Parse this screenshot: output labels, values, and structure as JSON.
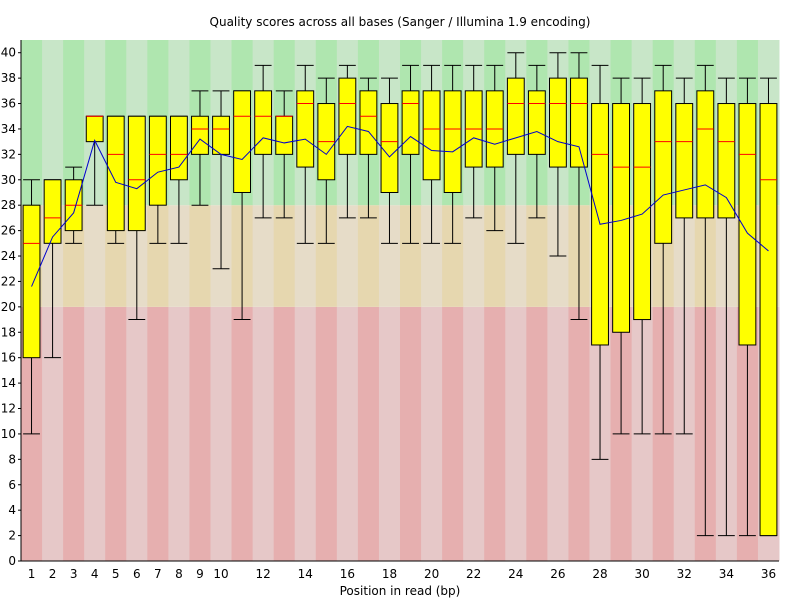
{
  "chart_data": {
    "type": "box",
    "title": "Quality scores across all bases (Sanger / Illumina 1.9 encoding)",
    "xlabel": "Position in read (bp)",
    "ylabel": "",
    "ylim": [
      0,
      41
    ],
    "y_ticks": [
      "0",
      "2",
      "4",
      "6",
      "8",
      "10",
      "12",
      "14",
      "16",
      "18",
      "20",
      "22",
      "24",
      "26",
      "28",
      "30",
      "32",
      "34",
      "36",
      "38",
      "40"
    ],
    "x_tick_labels": [
      "1",
      "2",
      "3",
      "4",
      "5",
      "6",
      "7",
      "8",
      "9",
      "10",
      "12",
      "14",
      "16",
      "18",
      "20",
      "22",
      "24",
      "26",
      "28",
      "30",
      "32",
      "34",
      "36"
    ],
    "x_tick_positions": [
      1,
      2,
      3,
      4,
      5,
      6,
      7,
      8,
      9,
      10,
      12,
      14,
      16,
      18,
      20,
      22,
      24,
      26,
      28,
      30,
      32,
      34,
      36
    ],
    "background_bands": [
      {
        "from": 0,
        "to": 20,
        "color": "#e6afaf",
        "alt_color": "#e6c8c8"
      },
      {
        "from": 20,
        "to": 28,
        "color": "#e6d7af",
        "alt_color": "#e6dcc8"
      },
      {
        "from": 28,
        "to": 41,
        "color": "#afe6af",
        "alt_color": "#c8e6c8"
      }
    ],
    "colors": {
      "box": "#ffff00",
      "median": "#ff0000",
      "mean": "#0000cc",
      "whisker": "#000000"
    },
    "positions": [
      1,
      2,
      3,
      4,
      5,
      6,
      7,
      8,
      9,
      10,
      11,
      12,
      13,
      14,
      15,
      16,
      17,
      18,
      19,
      20,
      21,
      22,
      23,
      24,
      25,
      26,
      27,
      28,
      29,
      30,
      31,
      32,
      33,
      34,
      35,
      36
    ],
    "boxes": [
      {
        "p10": 10,
        "q1": 16,
        "median": 25,
        "q3": 28,
        "p90": 30,
        "mean": 21.6
      },
      {
        "p10": 16,
        "q1": 25,
        "median": 27,
        "q3": 30,
        "p90": 30,
        "mean": 25.5
      },
      {
        "p10": 25,
        "q1": 26,
        "median": 28,
        "q3": 30,
        "p90": 31,
        "mean": 27.4
      },
      {
        "p10": 28,
        "q1": 33,
        "median": 35,
        "q3": 35,
        "p90": 35,
        "mean": 33.1
      },
      {
        "p10": 25,
        "q1": 26,
        "median": 32,
        "q3": 35,
        "p90": 35,
        "mean": 29.8
      },
      {
        "p10": 19,
        "q1": 26,
        "median": 30,
        "q3": 35,
        "p90": 35,
        "mean": 29.3
      },
      {
        "p10": 25,
        "q1": 28,
        "median": 32,
        "q3": 35,
        "p90": 35,
        "mean": 30.6
      },
      {
        "p10": 25,
        "q1": 30,
        "median": 32,
        "q3": 35,
        "p90": 35,
        "mean": 31.0
      },
      {
        "p10": 28,
        "q1": 32,
        "median": 34,
        "q3": 35,
        "p90": 37,
        "mean": 33.2
      },
      {
        "p10": 23,
        "q1": 32,
        "median": 34,
        "q3": 35,
        "p90": 37,
        "mean": 32.0
      },
      {
        "p10": 19,
        "q1": 29,
        "median": 35,
        "q3": 37,
        "p90": 37,
        "mean": 31.6
      },
      {
        "p10": 27,
        "q1": 32,
        "median": 35,
        "q3": 37,
        "p90": 39,
        "mean": 33.3
      },
      {
        "p10": 27,
        "q1": 32,
        "median": 35,
        "q3": 35,
        "p90": 37,
        "mean": 32.9
      },
      {
        "p10": 25,
        "q1": 31,
        "median": 36,
        "q3": 37,
        "p90": 39,
        "mean": 33.2
      },
      {
        "p10": 25,
        "q1": 30,
        "median": 33,
        "q3": 36,
        "p90": 38,
        "mean": 32.0
      },
      {
        "p10": 27,
        "q1": 32,
        "median": 36,
        "q3": 38,
        "p90": 39,
        "mean": 34.2
      },
      {
        "p10": 27,
        "q1": 32,
        "median": 35,
        "q3": 37,
        "p90": 38,
        "mean": 33.8
      },
      {
        "p10": 25,
        "q1": 29,
        "median": 33,
        "q3": 36,
        "p90": 38,
        "mean": 31.8
      },
      {
        "p10": 25,
        "q1": 32,
        "median": 36,
        "q3": 37,
        "p90": 39,
        "mean": 33.4
      },
      {
        "p10": 25,
        "q1": 30,
        "median": 34,
        "q3": 37,
        "p90": 39,
        "mean": 32.3
      },
      {
        "p10": 25,
        "q1": 29,
        "median": 34,
        "q3": 37,
        "p90": 39,
        "mean": 32.2
      },
      {
        "p10": 27,
        "q1": 31,
        "median": 34,
        "q3": 37,
        "p90": 39,
        "mean": 33.3
      },
      {
        "p10": 26,
        "q1": 31,
        "median": 34,
        "q3": 37,
        "p90": 39,
        "mean": 32.8
      },
      {
        "p10": 25,
        "q1": 32,
        "median": 36,
        "q3": 38,
        "p90": 40,
        "mean": 33.3
      },
      {
        "p10": 27,
        "q1": 32,
        "median": 36,
        "q3": 37,
        "p90": 39,
        "mean": 33.8
      },
      {
        "p10": 24,
        "q1": 31,
        "median": 36,
        "q3": 38,
        "p90": 40,
        "mean": 33.0
      },
      {
        "p10": 19,
        "q1": 31,
        "median": 36,
        "q3": 38,
        "p90": 40,
        "mean": 32.6
      },
      {
        "p10": 8,
        "q1": 17,
        "median": 32,
        "q3": 36,
        "p90": 39,
        "mean": 26.5
      },
      {
        "p10": 10,
        "q1": 18,
        "median": 31,
        "q3": 36,
        "p90": 38,
        "mean": 26.8
      },
      {
        "p10": 10,
        "q1": 19,
        "median": 31,
        "q3": 36,
        "p90": 38,
        "mean": 27.3
      },
      {
        "p10": 10,
        "q1": 25,
        "median": 33,
        "q3": 37,
        "p90": 39,
        "mean": 28.8
      },
      {
        "p10": 10,
        "q1": 27,
        "median": 33,
        "q3": 36,
        "p90": 38,
        "mean": 29.2
      },
      {
        "p10": 2,
        "q1": 27,
        "median": 34,
        "q3": 37,
        "p90": 39,
        "mean": 29.6
      },
      {
        "p10": 2,
        "q1": 27,
        "median": 33,
        "q3": 36,
        "p90": 38,
        "mean": 28.6
      },
      {
        "p10": 2,
        "q1": 17,
        "median": 32,
        "q3": 36,
        "p90": 38,
        "mean": 25.8
      },
      {
        "p10": 2,
        "q1": 2,
        "median": 30,
        "q3": 36,
        "p90": 38,
        "mean": 24.4
      }
    ]
  }
}
